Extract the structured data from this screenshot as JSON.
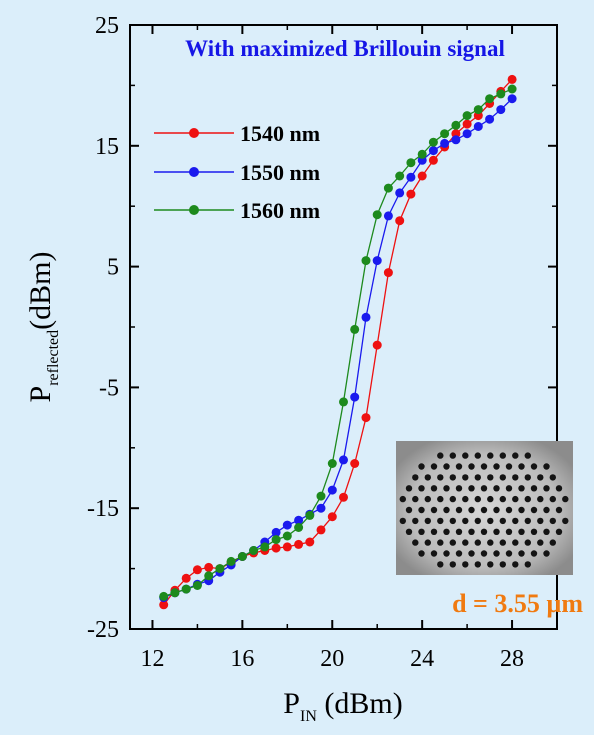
{
  "chart_data": {
    "type": "line",
    "title": "With maximized Brillouin signal",
    "xlabel": {
      "main": "P",
      "sub": "IN",
      "unit": " (dBm)"
    },
    "ylabel": {
      "main": "P",
      "sub": "reflected",
      "unit": "(dBm)"
    },
    "xlim": [
      11,
      30
    ],
    "ylim": [
      -25,
      25
    ],
    "xticks": [
      12,
      16,
      20,
      24,
      28
    ],
    "yticks": [
      -25,
      -15,
      -5,
      5,
      15,
      25
    ],
    "legend_position": "upper-left",
    "grid": false,
    "annotation": "d = 3.55 µm",
    "inset": "photonic crystal fiber cross-section micrograph",
    "series": [
      {
        "name": "1540 nm",
        "color": "#ee1111",
        "x": [
          12.5,
          13.0,
          13.5,
          14.0,
          14.5,
          15.0,
          15.5,
          16.0,
          16.5,
          17.0,
          17.5,
          18.0,
          18.5,
          19.0,
          19.5,
          20.0,
          20.5,
          21.0,
          21.5,
          22.0,
          22.5,
          23.0,
          23.5,
          24.0,
          24.5,
          25.0,
          25.5,
          26.0,
          26.5,
          27.0,
          27.5,
          28.0
        ],
        "values": [
          -23.0,
          -21.8,
          -20.8,
          -20.1,
          -19.9,
          -20.0,
          -19.5,
          -19.0,
          -18.7,
          -18.5,
          -18.3,
          -18.2,
          -18.0,
          -17.8,
          -16.8,
          -15.7,
          -14.1,
          -11.3,
          -7.5,
          -1.5,
          4.5,
          8.8,
          11.0,
          12.5,
          13.8,
          14.9,
          16.0,
          16.8,
          17.5,
          18.5,
          19.5,
          20.5
        ]
      },
      {
        "name": "1550 nm",
        "color": "#1a1aee",
        "x": [
          12.5,
          13.0,
          13.5,
          14.0,
          14.5,
          15.0,
          15.5,
          16.0,
          16.5,
          17.0,
          17.5,
          18.0,
          18.5,
          19.0,
          19.5,
          20.0,
          20.5,
          21.0,
          21.5,
          22.0,
          22.5,
          23.0,
          23.5,
          24.0,
          24.5,
          25.0,
          25.5,
          26.0,
          26.5,
          27.0,
          27.5,
          28.0
        ],
        "values": [
          -22.4,
          -22.0,
          -21.7,
          -21.3,
          -21.0,
          -20.3,
          -19.7,
          -19.0,
          -18.5,
          -17.8,
          -17.0,
          -16.4,
          -16.0,
          -15.5,
          -15.0,
          -13.5,
          -11.0,
          -5.8,
          0.8,
          5.5,
          9.2,
          11.1,
          12.4,
          13.8,
          14.6,
          15.2,
          15.5,
          16.0,
          16.6,
          17.2,
          18.0,
          18.9
        ]
      },
      {
        "name": "1560 nm",
        "color": "#1d8a1d",
        "x": [
          12.5,
          13.0,
          13.5,
          14.0,
          14.5,
          15.0,
          15.5,
          16.0,
          16.5,
          17.0,
          17.5,
          18.0,
          18.5,
          19.0,
          19.5,
          20.0,
          20.5,
          21.0,
          21.5,
          22.0,
          22.5,
          23.0,
          23.5,
          24.0,
          24.5,
          25.0,
          25.5,
          26.0,
          26.5,
          27.0,
          27.5,
          28.0
        ],
        "values": [
          -22.3,
          -22.0,
          -21.7,
          -21.4,
          -20.6,
          -20.0,
          -19.4,
          -19.0,
          -18.5,
          -18.2,
          -17.6,
          -17.3,
          -16.6,
          -15.6,
          -14.0,
          -11.3,
          -6.2,
          -0.2,
          5.5,
          9.3,
          11.5,
          12.5,
          13.6,
          14.3,
          15.3,
          16.0,
          16.7,
          17.5,
          18.0,
          18.9,
          19.3,
          19.7
        ]
      }
    ]
  }
}
